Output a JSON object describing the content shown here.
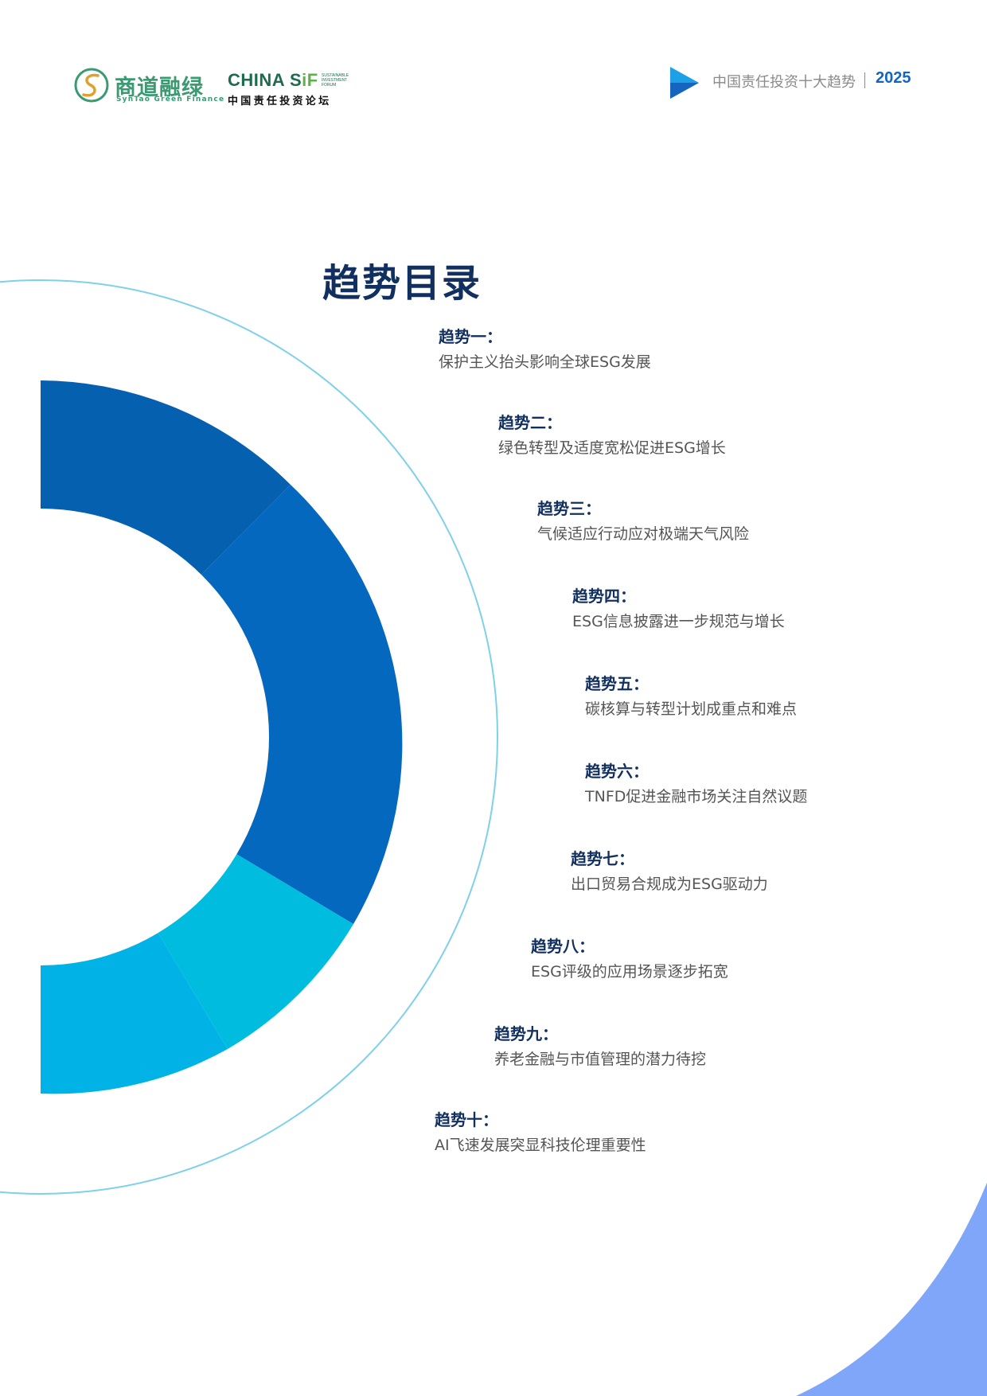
{
  "header": {
    "logo_syntao_cn": "商道融绿",
    "logo_syntao_en": "SynTao Green Finance",
    "logo_sif_word_main": "CHINA S",
    "logo_sif_word_accent": "iF",
    "logo_sif_small": "SUSTAINABLE INVESTMENT FORUM",
    "logo_sif_cn": "中国责任投资论坛",
    "doc_title": "中国责任投资十大趋势",
    "year": "2025"
  },
  "page": {
    "title": "趋势目录"
  },
  "trends": [
    {
      "label": "趋势一：",
      "desc": "保护主义抬头影响全球ESG发展"
    },
    {
      "label": "趋势二：",
      "desc": "绿色转型及适度宽松促进ESG增长"
    },
    {
      "label": "趋势三：",
      "desc": "气候适应行动应对极端天气风险"
    },
    {
      "label": "趋势四：",
      "desc": "ESG信息披露进一步规范与增长"
    },
    {
      "label": "趋势五：",
      "desc": "碳核算与转型计划成重点和难点"
    },
    {
      "label": "趋势六：",
      "desc": "TNFD促进金融市场关注自然议题"
    },
    {
      "label": "趋势七：",
      "desc": "出口贸易合规成为ESG驱动力"
    },
    {
      "label": "趋势八：",
      "desc": "ESG评级的应用场景逐步拓宽"
    },
    {
      "label": "趋势九：",
      "desc": "养老金融与市值管理的潜力待挖"
    },
    {
      "label": "趋势十：",
      "desc": "AI飞速发展突显科技伦理重要性"
    }
  ],
  "colors": {
    "title": "#12305f",
    "body_text": "#555555",
    "ring_dark": "#0560b0",
    "ring_main": "#0568bf",
    "ring_cyan": "#00bde0",
    "ring_sky": "#00b2e5",
    "outline": "#7fd0ea",
    "corner": "#7fa6f8",
    "year": "#1565c0"
  }
}
